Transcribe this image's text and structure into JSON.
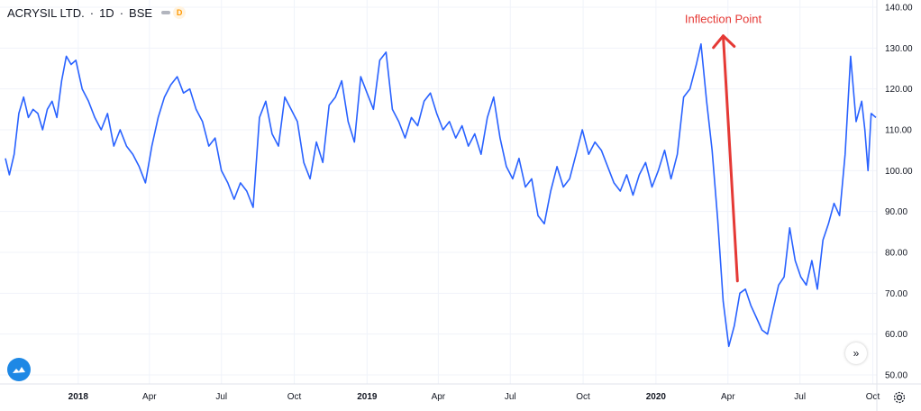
{
  "header": {
    "symbol": "ACRYSIL LTD.",
    "interval": "1D",
    "exchange": "BSE",
    "badge": "D"
  },
  "icons": {
    "logo": "tradingview-cloud-icon",
    "scroll": "double-chevron-right-icon",
    "settings": "gear-icon"
  },
  "colors": {
    "line": "#2962ff",
    "annotation": "#e53935",
    "grid": "#f0f3fa",
    "badge": "#ff9800"
  },
  "chart_data": {
    "type": "line",
    "title": "ACRYSIL LTD. · 1D · BSE",
    "xlabel": "",
    "ylabel": "",
    "y_axis_position": "right",
    "ylim": [
      50,
      140
    ],
    "y_ticks": [
      "50.00",
      "60.00",
      "70.00",
      "80.00",
      "90.00",
      "100.00",
      "110.00",
      "120.00",
      "130.00",
      "140.00"
    ],
    "xlim": [
      "2017-10-01",
      "2020-10-05"
    ],
    "x_ticks": [
      {
        "date": "2018-01-01",
        "label": "2018",
        "bold": true
      },
      {
        "date": "2018-04-01",
        "label": "Apr",
        "bold": false
      },
      {
        "date": "2018-07-01",
        "label": "Jul",
        "bold": false
      },
      {
        "date": "2018-10-01",
        "label": "Oct",
        "bold": false
      },
      {
        "date": "2019-01-01",
        "label": "2019",
        "bold": true
      },
      {
        "date": "2019-04-01",
        "label": "Apr",
        "bold": false
      },
      {
        "date": "2019-07-01",
        "label": "Jul",
        "bold": false
      },
      {
        "date": "2019-10-01",
        "label": "Oct",
        "bold": false
      },
      {
        "date": "2020-01-01",
        "label": "2020",
        "bold": true
      },
      {
        "date": "2020-04-01",
        "label": "Apr",
        "bold": false
      },
      {
        "date": "2020-07-01",
        "label": "Jul",
        "bold": false
      },
      {
        "date": "2020-10-01",
        "label": "Oct",
        "bold": false
      }
    ],
    "series": [
      {
        "name": "",
        "points": [
          [
            "2017-10-01",
            103
          ],
          [
            "2017-10-06",
            99
          ],
          [
            "2017-10-12",
            104
          ],
          [
            "2017-10-18",
            114
          ],
          [
            "2017-10-24",
            118
          ],
          [
            "2017-10-30",
            113
          ],
          [
            "2017-11-05",
            115
          ],
          [
            "2017-11-11",
            114
          ],
          [
            "2017-11-17",
            110
          ],
          [
            "2017-11-23",
            115
          ],
          [
            "2017-11-29",
            117
          ],
          [
            "2017-12-05",
            113
          ],
          [
            "2017-12-11",
            122
          ],
          [
            "2017-12-17",
            128
          ],
          [
            "2017-12-23",
            126
          ],
          [
            "2017-12-29",
            127
          ],
          [
            "2018-01-06",
            120
          ],
          [
            "2018-01-14",
            117
          ],
          [
            "2018-01-22",
            113
          ],
          [
            "2018-01-30",
            110
          ],
          [
            "2018-02-07",
            114
          ],
          [
            "2018-02-15",
            106
          ],
          [
            "2018-02-23",
            110
          ],
          [
            "2018-03-03",
            106
          ],
          [
            "2018-03-11",
            104
          ],
          [
            "2018-03-19",
            101
          ],
          [
            "2018-03-27",
            97
          ],
          [
            "2018-04-04",
            106
          ],
          [
            "2018-04-12",
            113
          ],
          [
            "2018-04-20",
            118
          ],
          [
            "2018-04-28",
            121
          ],
          [
            "2018-05-06",
            123
          ],
          [
            "2018-05-14",
            119
          ],
          [
            "2018-05-22",
            120
          ],
          [
            "2018-05-30",
            115
          ],
          [
            "2018-06-07",
            112
          ],
          [
            "2018-06-15",
            106
          ],
          [
            "2018-06-23",
            108
          ],
          [
            "2018-07-01",
            100
          ],
          [
            "2018-07-09",
            97
          ],
          [
            "2018-07-17",
            93
          ],
          [
            "2018-07-25",
            97
          ],
          [
            "2018-08-02",
            95
          ],
          [
            "2018-08-10",
            91
          ],
          [
            "2018-08-18",
            113
          ],
          [
            "2018-08-26",
            117
          ],
          [
            "2018-09-03",
            109
          ],
          [
            "2018-09-11",
            106
          ],
          [
            "2018-09-19",
            118
          ],
          [
            "2018-09-27",
            115
          ],
          [
            "2018-10-05",
            112
          ],
          [
            "2018-10-13",
            102
          ],
          [
            "2018-10-21",
            98
          ],
          [
            "2018-10-29",
            107
          ],
          [
            "2018-11-06",
            102
          ],
          [
            "2018-11-14",
            116
          ],
          [
            "2018-11-22",
            118
          ],
          [
            "2018-11-30",
            122
          ],
          [
            "2018-12-08",
            112
          ],
          [
            "2018-12-16",
            107
          ],
          [
            "2018-12-24",
            123
          ],
          [
            "2019-01-01",
            119
          ],
          [
            "2019-01-09",
            115
          ],
          [
            "2019-01-17",
            127
          ],
          [
            "2019-01-25",
            129
          ],
          [
            "2019-02-02",
            115
          ],
          [
            "2019-02-10",
            112
          ],
          [
            "2019-02-18",
            108
          ],
          [
            "2019-02-26",
            113
          ],
          [
            "2019-03-06",
            111
          ],
          [
            "2019-03-14",
            117
          ],
          [
            "2019-03-22",
            119
          ],
          [
            "2019-03-30",
            114
          ],
          [
            "2019-04-07",
            110
          ],
          [
            "2019-04-15",
            112
          ],
          [
            "2019-04-23",
            108
          ],
          [
            "2019-05-01",
            111
          ],
          [
            "2019-05-09",
            106
          ],
          [
            "2019-05-17",
            109
          ],
          [
            "2019-05-25",
            104
          ],
          [
            "2019-06-02",
            113
          ],
          [
            "2019-06-10",
            118
          ],
          [
            "2019-06-18",
            108
          ],
          [
            "2019-06-26",
            101
          ],
          [
            "2019-07-04",
            98
          ],
          [
            "2019-07-12",
            103
          ],
          [
            "2019-07-20",
            96
          ],
          [
            "2019-07-28",
            98
          ],
          [
            "2019-08-05",
            89
          ],
          [
            "2019-08-13",
            87
          ],
          [
            "2019-08-21",
            95
          ],
          [
            "2019-08-29",
            101
          ],
          [
            "2019-09-06",
            96
          ],
          [
            "2019-09-14",
            98
          ],
          [
            "2019-09-22",
            104
          ],
          [
            "2019-09-30",
            110
          ],
          [
            "2019-10-08",
            104
          ],
          [
            "2019-10-16",
            107
          ],
          [
            "2019-10-24",
            105
          ],
          [
            "2019-11-01",
            101
          ],
          [
            "2019-11-09",
            97
          ],
          [
            "2019-11-17",
            95
          ],
          [
            "2019-11-25",
            99
          ],
          [
            "2019-12-03",
            94
          ],
          [
            "2019-12-11",
            99
          ],
          [
            "2019-12-19",
            102
          ],
          [
            "2019-12-27",
            96
          ],
          [
            "2020-01-04",
            100
          ],
          [
            "2020-01-12",
            105
          ],
          [
            "2020-01-20",
            98
          ],
          [
            "2020-01-28",
            104
          ],
          [
            "2020-02-05",
            118
          ],
          [
            "2020-02-13",
            120
          ],
          [
            "2020-02-21",
            126
          ],
          [
            "2020-02-27",
            131
          ],
          [
            "2020-03-05",
            117
          ],
          [
            "2020-03-12",
            105
          ],
          [
            "2020-03-19",
            88
          ],
          [
            "2020-03-26",
            68
          ],
          [
            "2020-04-02",
            57
          ],
          [
            "2020-04-09",
            62
          ],
          [
            "2020-04-16",
            70
          ],
          [
            "2020-04-23",
            71
          ],
          [
            "2020-04-30",
            67
          ],
          [
            "2020-05-07",
            64
          ],
          [
            "2020-05-14",
            61
          ],
          [
            "2020-05-21",
            60
          ],
          [
            "2020-05-28",
            66
          ],
          [
            "2020-06-04",
            72
          ],
          [
            "2020-06-11",
            74
          ],
          [
            "2020-06-18",
            86
          ],
          [
            "2020-06-25",
            78
          ],
          [
            "2020-07-02",
            74
          ],
          [
            "2020-07-09",
            72
          ],
          [
            "2020-07-16",
            78
          ],
          [
            "2020-07-23",
            71
          ],
          [
            "2020-07-30",
            83
          ],
          [
            "2020-08-06",
            87
          ],
          [
            "2020-08-13",
            92
          ],
          [
            "2020-08-20",
            89
          ],
          [
            "2020-08-27",
            104
          ],
          [
            "2020-09-03",
            128
          ],
          [
            "2020-09-10",
            112
          ],
          [
            "2020-09-17",
            117
          ],
          [
            "2020-09-21",
            110
          ],
          [
            "2020-09-25",
            100
          ],
          [
            "2020-09-29",
            114
          ],
          [
            "2020-10-05",
            113
          ]
        ]
      }
    ],
    "grid": true,
    "legend": "none",
    "annotations": [
      {
        "text": "Inflection Point",
        "type": "arrow",
        "from": [
          "2020-04-13",
          73
        ],
        "to": [
          "2020-03-26",
          133
        ]
      }
    ]
  }
}
